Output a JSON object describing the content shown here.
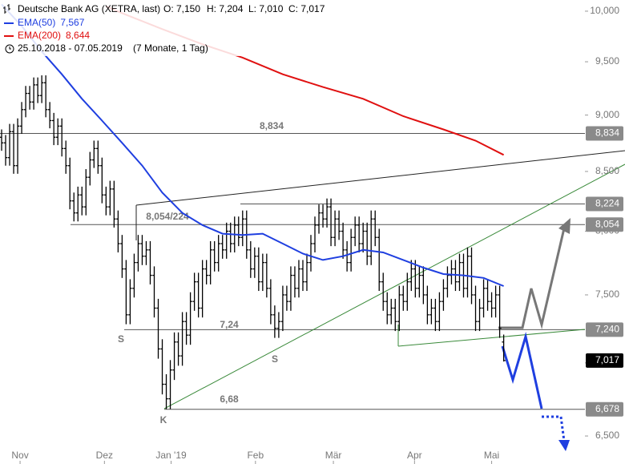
{
  "chart_data": {
    "type": "ohlc",
    "header": {
      "title": "Deutsche Bank AG (XETRA, last)",
      "ohlc_labels": [
        "O: 7,150",
        "H: 7,204",
        "L: 7,010",
        "C: 7,017"
      ],
      "period": "25.10.2018 - 07.05.2019",
      "span": "(7 Monate, 1 Tag)"
    },
    "log_scale": true,
    "ylim": [
      6.318,
      10.114
    ],
    "yticks": [
      {
        "value": 10,
        "label": "10,000"
      },
      {
        "value": 9.5,
        "label": "9,500"
      },
      {
        "value": 9,
        "label": "9,000"
      },
      {
        "value": 8.5,
        "label": "8,500"
      },
      {
        "value": 8,
        "label": "8,000"
      },
      {
        "value": 7.5,
        "label": "7,500"
      },
      {
        "value": 7,
        "label": "7,000"
      },
      {
        "value": 6.5,
        "label": "6,500"
      }
    ],
    "xlim": [
      -0.4,
      155.2
    ],
    "xticks": [
      {
        "value": 4.6,
        "label": "Nov"
      },
      {
        "value": 25.6,
        "label": "Dez"
      },
      {
        "value": 42.2,
        "label": "Jan '19"
      },
      {
        "value": 63.2,
        "label": "Feb"
      },
      {
        "value": 82.6,
        "label": "Mär"
      },
      {
        "value": 102.8,
        "label": "Apr"
      },
      {
        "value": 122,
        "label": "Mai"
      }
    ],
    "bar_color": "#000000",
    "ohlc": [
      [
        8.8,
        8.87,
        8.68,
        8.75
      ],
      [
        8.75,
        8.82,
        8.55,
        8.62
      ],
      [
        8.62,
        8.92,
        8.55,
        8.85
      ],
      [
        8.85,
        8.92,
        8.48,
        8.55
      ],
      [
        8.55,
        8.97,
        8.48,
        8.9
      ],
      [
        8.9,
        9.12,
        8.83,
        9.05
      ],
      [
        9.05,
        9.27,
        8.98,
        9.2
      ],
      [
        9.2,
        9.27,
        9.05,
        9.12
      ],
      [
        9.12,
        9.35,
        9.05,
        9.28
      ],
      [
        9.28,
        9.35,
        9.11,
        9.18
      ],
      [
        9.18,
        9.37,
        9.11,
        9.3
      ],
      [
        9.3,
        9.37,
        8.98,
        9.05
      ],
      [
        9.05,
        9.12,
        8.88,
        8.95
      ],
      [
        8.95,
        9.02,
        8.73,
        8.8
      ],
      [
        8.8,
        8.97,
        8.73,
        8.9
      ],
      [
        8.9,
        8.97,
        8.63,
        8.7
      ],
      [
        8.7,
        8.77,
        8.48,
        8.55
      ],
      [
        8.55,
        8.62,
        8.18,
        8.25
      ],
      [
        8.25,
        8.32,
        8.08,
        8.15
      ],
      [
        8.15,
        8.37,
        8.08,
        8.3
      ],
      [
        8.3,
        8.37,
        8.13,
        8.2
      ],
      [
        8.2,
        8.52,
        8.13,
        8.45
      ],
      [
        8.45,
        8.67,
        8.38,
        8.6
      ],
      [
        8.6,
        8.77,
        8.53,
        8.7
      ],
      [
        8.7,
        8.77,
        8.48,
        8.55
      ],
      [
        8.55,
        8.62,
        8.23,
        8.3
      ],
      [
        8.3,
        8.37,
        8.13,
        8.2
      ],
      [
        8.2,
        8.42,
        8.13,
        8.35
      ],
      [
        8.35,
        8.42,
        8.03,
        8.1
      ],
      [
        8.1,
        8.17,
        7.83,
        7.9
      ],
      [
        7.9,
        7.97,
        7.63,
        7.7
      ],
      [
        7.7,
        7.77,
        7.28,
        7.35
      ],
      [
        7.35,
        7.62,
        7.28,
        7.55
      ],
      [
        7.55,
        7.82,
        7.48,
        7.75
      ],
      [
        7.75,
        7.97,
        7.68,
        7.9
      ],
      [
        7.9,
        7.97,
        7.73,
        7.8
      ],
      [
        7.8,
        7.92,
        7.73,
        7.85
      ],
      [
        7.85,
        7.92,
        7.58,
        7.65
      ],
      [
        7.65,
        7.72,
        7.33,
        7.4
      ],
      [
        7.4,
        7.47,
        7.03,
        7.1
      ],
      [
        7.1,
        7.17,
        6.78,
        6.85
      ],
      [
        6.85,
        6.92,
        6.68,
        6.75
      ],
      [
        6.75,
        7.02,
        6.68,
        6.95
      ],
      [
        6.95,
        7.22,
        6.88,
        7.15
      ],
      [
        7.15,
        7.22,
        6.98,
        7.05
      ],
      [
        7.05,
        7.37,
        6.98,
        7.3
      ],
      [
        7.3,
        7.37,
        7.13,
        7.2
      ],
      [
        7.2,
        7.52,
        7.13,
        7.45
      ],
      [
        7.45,
        7.67,
        7.38,
        7.6
      ],
      [
        7.6,
        7.67,
        7.33,
        7.4
      ],
      [
        7.4,
        7.77,
        7.33,
        7.7
      ],
      [
        7.7,
        7.77,
        7.58,
        7.65
      ],
      [
        7.65,
        7.92,
        7.58,
        7.85
      ],
      [
        7.85,
        7.92,
        7.68,
        7.75
      ],
      [
        7.75,
        7.97,
        7.68,
        7.9
      ],
      [
        7.9,
        7.97,
        7.78,
        7.85
      ],
      [
        7.85,
        8.07,
        7.78,
        8.0
      ],
      [
        8.0,
        8.07,
        7.83,
        7.9
      ],
      [
        7.9,
        8.12,
        7.83,
        8.05
      ],
      [
        8.05,
        8.12,
        7.88,
        7.95
      ],
      [
        7.95,
        8.17,
        7.88,
        8.1
      ],
      [
        8.1,
        8.17,
        7.78,
        7.85
      ],
      [
        7.85,
        7.92,
        7.63,
        7.7
      ],
      [
        7.7,
        7.87,
        7.63,
        7.8
      ],
      [
        7.8,
        7.87,
        7.53,
        7.6
      ],
      [
        7.6,
        7.82,
        7.53,
        7.75
      ],
      [
        7.75,
        7.82,
        7.48,
        7.55
      ],
      [
        7.55,
        7.62,
        7.28,
        7.35
      ],
      [
        7.35,
        7.42,
        7.18,
        7.25
      ],
      [
        7.25,
        7.37,
        7.18,
        7.3
      ],
      [
        7.3,
        7.57,
        7.23,
        7.5
      ],
      [
        7.5,
        7.57,
        7.38,
        7.45
      ],
      [
        7.45,
        7.72,
        7.38,
        7.65
      ],
      [
        7.65,
        7.72,
        7.48,
        7.55
      ],
      [
        7.55,
        7.77,
        7.48,
        7.7
      ],
      [
        7.7,
        7.77,
        7.53,
        7.6
      ],
      [
        7.6,
        7.82,
        7.53,
        7.75
      ],
      [
        7.75,
        7.97,
        7.68,
        7.9
      ],
      [
        7.9,
        8.12,
        7.83,
        8.05
      ],
      [
        8.05,
        8.22,
        7.98,
        8.15
      ],
      [
        8.15,
        8.22,
        8.03,
        8.1
      ],
      [
        8.1,
        8.27,
        8.03,
        8.2
      ],
      [
        8.2,
        8.27,
        7.88,
        7.95
      ],
      [
        7.95,
        8.17,
        7.88,
        8.1
      ],
      [
        8.1,
        8.17,
        7.93,
        8.0
      ],
      [
        8.0,
        8.07,
        7.78,
        7.85
      ],
      [
        7.85,
        7.92,
        7.68,
        7.75
      ],
      [
        7.75,
        8.02,
        7.68,
        7.95
      ],
      [
        7.95,
        8.12,
        7.88,
        8.05
      ],
      [
        8.05,
        8.12,
        7.83,
        7.9
      ],
      [
        7.9,
        8.07,
        7.83,
        8.0
      ],
      [
        8.0,
        8.07,
        7.73,
        7.8
      ],
      [
        7.8,
        8.17,
        7.73,
        8.1
      ],
      [
        8.1,
        8.17,
        7.88,
        7.95
      ],
      [
        7.95,
        8.02,
        7.53,
        7.6
      ],
      [
        7.6,
        7.67,
        7.38,
        7.45
      ],
      [
        7.45,
        7.52,
        7.28,
        7.35
      ],
      [
        7.35,
        7.47,
        7.28,
        7.4
      ],
      [
        7.4,
        7.47,
        7.23,
        7.3
      ],
      [
        7.3,
        7.57,
        7.23,
        7.5
      ],
      [
        7.5,
        7.57,
        7.38,
        7.45
      ],
      [
        7.45,
        7.67,
        7.38,
        7.6
      ],
      [
        7.6,
        7.77,
        7.53,
        7.7
      ],
      [
        7.7,
        7.77,
        7.48,
        7.55
      ],
      [
        7.55,
        7.72,
        7.48,
        7.65
      ],
      [
        7.65,
        7.72,
        7.43,
        7.5
      ],
      [
        7.5,
        7.57,
        7.28,
        7.35
      ],
      [
        7.35,
        7.47,
        7.28,
        7.4
      ],
      [
        7.4,
        7.47,
        7.23,
        7.3
      ],
      [
        7.3,
        7.52,
        7.23,
        7.45
      ],
      [
        7.45,
        7.62,
        7.38,
        7.55
      ],
      [
        7.55,
        7.72,
        7.48,
        7.65
      ],
      [
        7.65,
        7.77,
        7.58,
        7.7
      ],
      [
        7.7,
        7.77,
        7.53,
        7.6
      ],
      [
        7.6,
        7.82,
        7.53,
        7.75
      ],
      [
        7.75,
        7.82,
        7.48,
        7.55
      ],
      [
        7.55,
        7.87,
        7.48,
        7.8
      ],
      [
        7.8,
        7.87,
        7.43,
        7.5
      ],
      [
        7.5,
        7.57,
        7.23,
        7.3
      ],
      [
        7.3,
        7.47,
        7.23,
        7.4
      ],
      [
        7.4,
        7.62,
        7.33,
        7.55
      ],
      [
        7.55,
        7.62,
        7.38,
        7.45
      ],
      [
        7.45,
        7.52,
        7.33,
        7.4
      ],
      [
        7.4,
        7.57,
        7.33,
        7.5
      ],
      [
        7.5,
        7.57,
        7.18,
        7.25
      ],
      [
        7.15,
        7.204,
        7.01,
        7.017
      ]
    ],
    "series": [
      {
        "name": "EMA(50)",
        "label": "7,567",
        "color": "#1f3fe0",
        "x": [
          0,
          5,
          10,
          15,
          20,
          25,
          30,
          35,
          40,
          45,
          50,
          55,
          60,
          65,
          70,
          75,
          80,
          85,
          90,
          95,
          100,
          105,
          110,
          115,
          120,
          125
        ],
        "values": [
          10.07,
          9.85,
          9.6,
          9.38,
          9.15,
          8.95,
          8.75,
          8.55,
          8.32,
          8.15,
          8.05,
          7.98,
          7.97,
          7.98,
          7.9,
          7.82,
          7.77,
          7.8,
          7.85,
          7.83,
          7.77,
          7.71,
          7.66,
          7.65,
          7.63,
          7.567
        ]
      },
      {
        "name": "EMA(200)",
        "label": "8,644",
        "color": "#e01010",
        "x": [
          26,
          30,
          40,
          50,
          60,
          70,
          80,
          90,
          100,
          110,
          118,
          125
        ],
        "values": [
          10.05,
          9.98,
          9.82,
          9.67,
          9.54,
          9.38,
          9.26,
          9.15,
          8.99,
          8.87,
          8.77,
          8.644
        ]
      }
    ],
    "levels": [
      {
        "value": 8.834,
        "label": "8,834"
      },
      {
        "value": 8.224,
        "label": "8,224"
      },
      {
        "value": 8.054,
        "label": "8,054"
      },
      {
        "value": 7.24,
        "label": "7,240"
      },
      {
        "value": 7.017,
        "label": "7,017"
      },
      {
        "value": 6.678,
        "label": "6,678"
      }
    ],
    "annotations": [
      "8,834",
      "8,054/224",
      "7,24",
      "6,68",
      "S",
      "S",
      "K"
    ]
  }
}
